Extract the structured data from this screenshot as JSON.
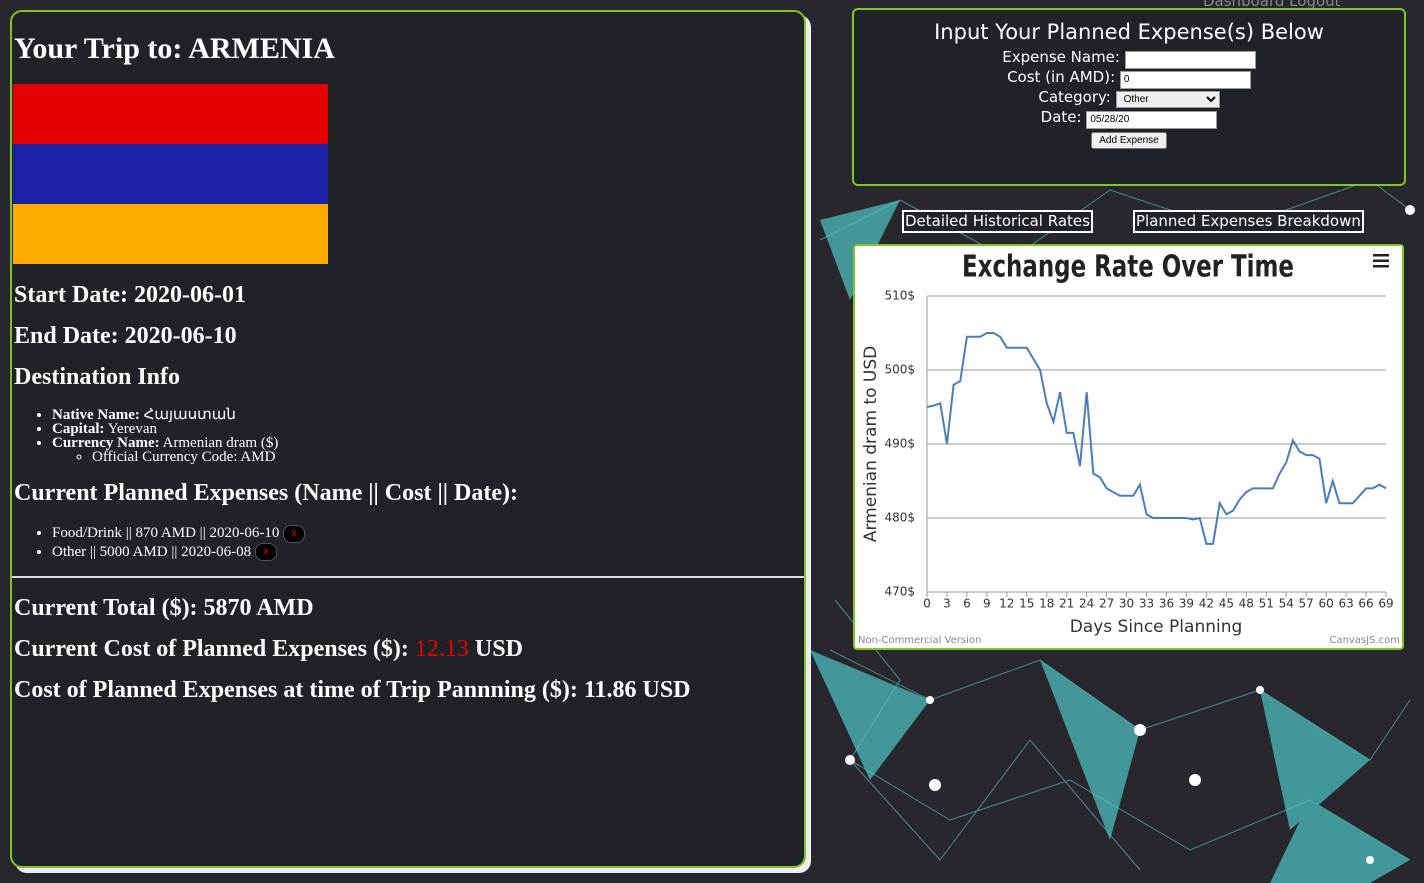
{
  "nav": [
    "Dashboard",
    "Logout"
  ],
  "trip": {
    "title": "Your Trip to: ARMENIA",
    "start_label": "Start Date:",
    "start": "2020-06-01",
    "end_label": "End Date:",
    "end": "2020-06-10",
    "info_heading": "Destination Info",
    "info": [
      {
        "label": "Native Name:",
        "value": "Հայաստան"
      },
      {
        "label": "Capital:",
        "value": "Yerevan"
      },
      {
        "label": "Currency Name:",
        "value": "Armenian dram ($)"
      }
    ],
    "currency_code": "Official Currency Code: AMD",
    "expenses_heading": "Current Planned Expenses (Name || Cost || Date):",
    "expenses": [
      "Food/Drink || 870 AMD || 2020-06-10",
      "Other || 5000 AMD || 2020-06-08"
    ],
    "delete_label": "x",
    "total": "Current Total ($): 5870 AMD",
    "current_cost_label": "Current Cost of Planned Expenses ($):",
    "current_cost": "12.13",
    "current_cost_unit": "USD",
    "planning_cost": "Cost of Planned Expenses at time of Trip Pannning ($): 11.86 USD"
  },
  "form": {
    "title": "Input Your Planned Expense(s) Below",
    "name_label": "Expense Name:",
    "cost_label": "Cost (in AMD):",
    "cost": "0",
    "category_label": "Category:",
    "category": "Other",
    "date_label": "Date:",
    "date": "05/28/20",
    "submit": "Add Expense"
  },
  "buttons": [
    "Detailed Historical Rates",
    "Planned Expenses Breakdown"
  ],
  "chart_data": {
    "type": "line",
    "title": "Exchange Rate Over Time",
    "x_label": "Days Since Planning",
    "y_label": "Armenian dram to USD",
    "credit_left": "Non-Commercial Version",
    "credit_right": "CanvasJS.com",
    "x": [
      0,
      1,
      2,
      3,
      4,
      5,
      6,
      7,
      8,
      9,
      10,
      11,
      12,
      13,
      14,
      15,
      16,
      17,
      18,
      19,
      20,
      21,
      22,
      23,
      24,
      25,
      26,
      27,
      28,
      29,
      30,
      31,
      32,
      33,
      34,
      35,
      36,
      37,
      38,
      39,
      40,
      41,
      42,
      43,
      44,
      45,
      46,
      47,
      48,
      49,
      50,
      51,
      52,
      53,
      54,
      55,
      56,
      57,
      58,
      59,
      60,
      61,
      62,
      63,
      64,
      65,
      66,
      67,
      68,
      69
    ],
    "values": [
      495,
      495.2,
      495.5,
      490,
      498,
      498.5,
      504.5,
      504.5,
      504.5,
      505,
      505,
      504.5,
      503,
      503,
      503,
      503,
      501.5,
      500,
      495.5,
      493,
      497,
      491.5,
      491.5,
      487,
      497,
      486,
      485.5,
      484,
      483.5,
      483,
      483,
      483,
      484.5,
      480.5,
      480,
      480,
      480,
      480,
      480,
      480,
      479.8,
      480,
      476.5,
      476.5,
      482,
      480.5,
      481,
      482.5,
      483.5,
      484,
      484,
      484,
      484,
      486,
      487.5,
      490.5,
      489,
      488.5,
      488.5,
      488,
      482,
      485,
      482,
      482,
      482,
      483,
      484,
      484,
      484.5,
      484
    ],
    "color": "#4a7ebb",
    "xlim": [
      0,
      69
    ],
    "xticks": [
      0,
      3,
      6,
      9,
      12,
      15,
      18,
      21,
      24,
      27,
      30,
      33,
      36,
      39,
      42,
      45,
      48,
      51,
      54,
      57,
      60,
      63,
      66,
      69
    ],
    "ylim": [
      470,
      510
    ],
    "yticks": [
      {
        "value": 470,
        "label": "470$"
      },
      {
        "value": 480,
        "label": "480$"
      },
      {
        "value": 490,
        "label": "490$"
      },
      {
        "value": 500,
        "label": "500$"
      },
      {
        "value": 510,
        "label": "510$"
      }
    ],
    "grid": true
  }
}
